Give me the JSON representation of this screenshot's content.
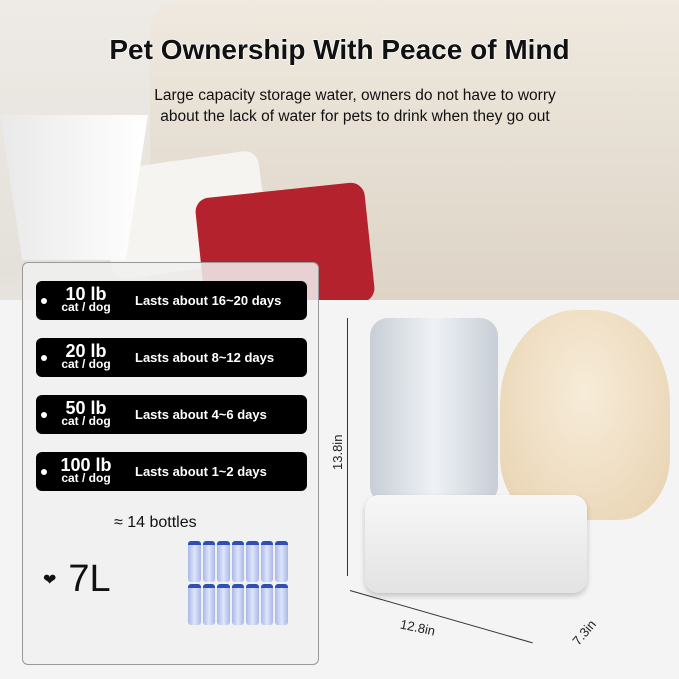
{
  "headline": "Pet Ownership With Peace of Mind",
  "subtitle": "Large capacity storage water, owners do not have to worry about the lack of water for pets to drink when they go out",
  "usage": [
    {
      "weight": "10 lb",
      "pet": "cat / dog",
      "duration": "Lasts about 16~20 days"
    },
    {
      "weight": "20 lb",
      "pet": "cat / dog",
      "duration": "Lasts about 8~12 days"
    },
    {
      "weight": "50 lb",
      "pet": "cat / dog",
      "duration": "Lasts about 4~6 days"
    },
    {
      "weight": "100 lb",
      "pet": "cat / dog",
      "duration": "Lasts about 1~2 days"
    }
  ],
  "bottles": "≈ 14 bottles",
  "capacity": "7L",
  "capacity_icon": "heart-icon",
  "dimensions": {
    "height": "13.8in",
    "length": "12.8in",
    "width": "7.3in"
  }
}
